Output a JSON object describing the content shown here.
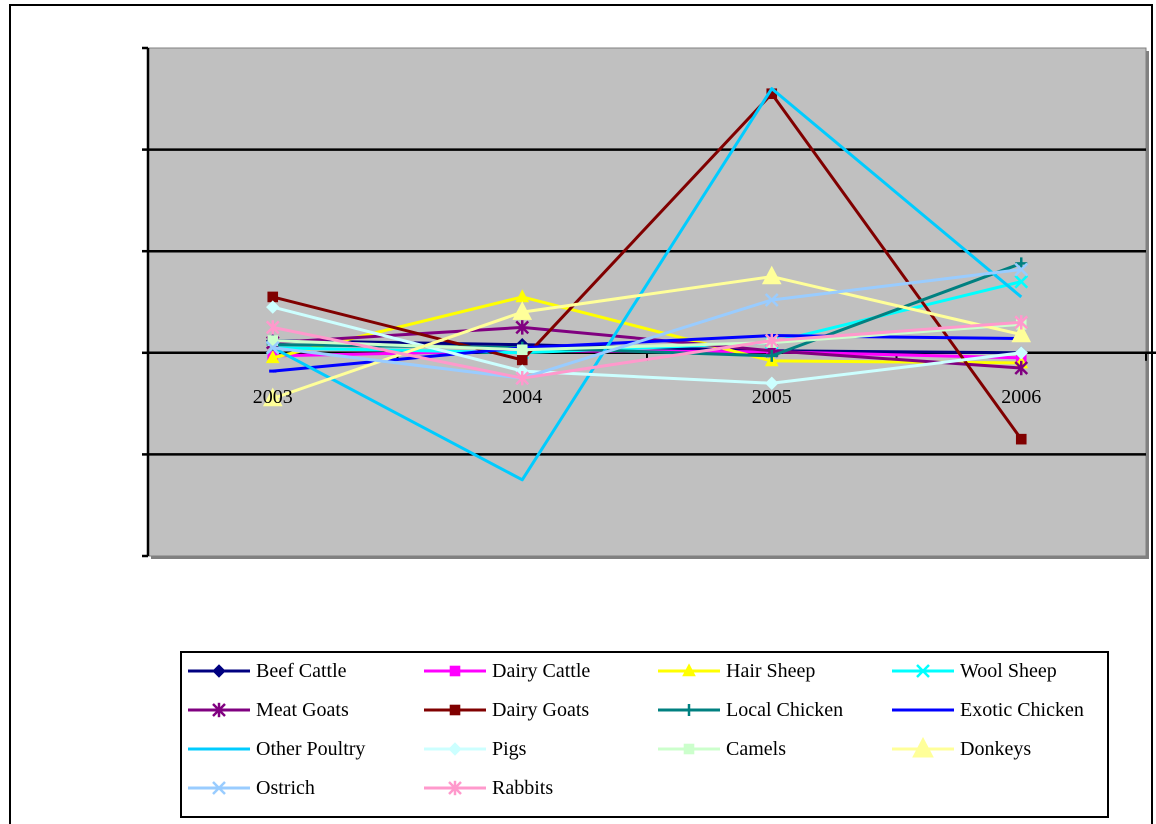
{
  "chart_data": {
    "type": "line",
    "title": "",
    "xlabel": "",
    "ylabel": "",
    "categories": [
      "2003",
      "2004",
      "2005",
      "2006"
    ],
    "ylim": [
      -2,
      3
    ],
    "y_tick_labels_visible": false,
    "grid": true,
    "plot_background": "#C0C0C0",
    "legend_position": "bottom",
    "series": [
      {
        "name": "Beef Cattle",
        "color": "#000080",
        "marker": "diamond",
        "values": [
          0.12,
          0.08,
          0.02,
          0.0
        ]
      },
      {
        "name": "Dairy Cattle",
        "color": "#FF00FF",
        "marker": "square",
        "values": [
          -0.03,
          0.02,
          0.01,
          -0.05
        ]
      },
      {
        "name": "Hair Sheep",
        "color": "#FFFF00",
        "marker": "triangle",
        "values": [
          -0.05,
          0.55,
          -0.08,
          -0.1
        ]
      },
      {
        "name": "Wool Sheep",
        "color": "#00FFFF",
        "marker": "x",
        "values": [
          0.05,
          0.0,
          0.1,
          0.7
        ]
      },
      {
        "name": "Meat Goats",
        "color": "#800080",
        "marker": "asterisk",
        "values": [
          0.1,
          0.25,
          0.02,
          -0.15
        ]
      },
      {
        "name": "Dairy Goats",
        "color": "#800000",
        "marker": "square",
        "values": [
          0.55,
          -0.07,
          2.55,
          -0.85
        ]
      },
      {
        "name": "Local Chicken",
        "color": "#008080",
        "marker": "plus",
        "values": [
          0.08,
          0.05,
          -0.03,
          0.88
        ]
      },
      {
        "name": "Exotic Chicken",
        "color": "#0000FF",
        "marker": "dash",
        "values": [
          -0.18,
          0.05,
          0.17,
          0.14
        ]
      },
      {
        "name": "Other Poultry",
        "color": "#00CCFF",
        "marker": "none",
        "values": [
          0.05,
          -1.25,
          2.6,
          0.55
        ]
      },
      {
        "name": "Pigs",
        "color": "#CCFFFF",
        "marker": "diamond",
        "values": [
          0.45,
          -0.18,
          -0.3,
          0.0
        ]
      },
      {
        "name": "Camels",
        "color": "#CCFFCC",
        "marker": "square",
        "values": [
          0.12,
          0.03,
          0.1,
          0.28
        ]
      },
      {
        "name": "Donkeys",
        "color": "#FFFF99",
        "marker": "triangle",
        "values": [
          -0.45,
          0.4,
          0.75,
          0.18
        ]
      },
      {
        "name": "Ostrich",
        "color": "#99CCFF",
        "marker": "x",
        "values": [
          0.05,
          -0.25,
          0.52,
          0.82
        ]
      },
      {
        "name": "Rabbits",
        "color": "#FF99CC",
        "marker": "asterisk",
        "values": [
          0.25,
          -0.25,
          0.12,
          0.3
        ]
      }
    ]
  }
}
